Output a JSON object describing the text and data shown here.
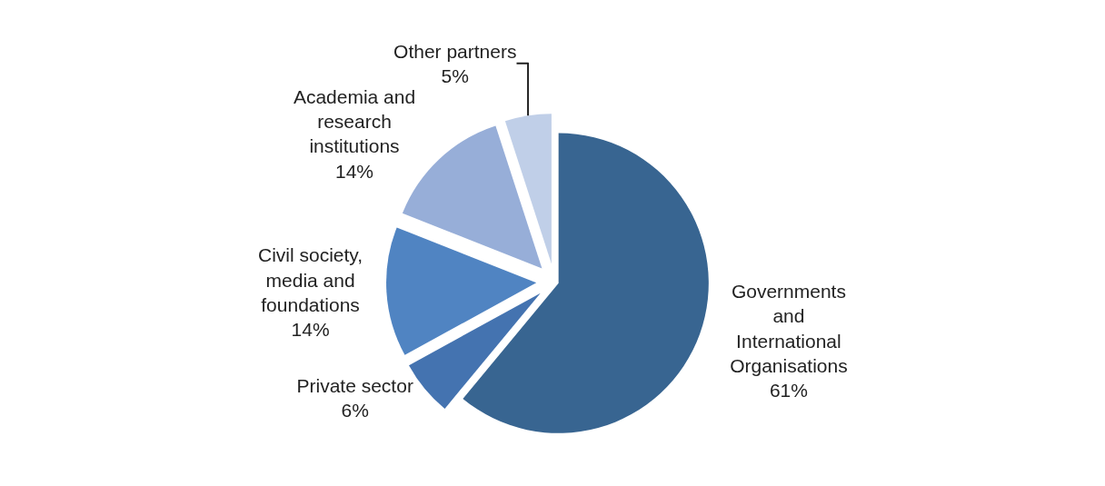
{
  "chart_data": {
    "type": "pie",
    "categories": [
      "Governments and International Organisations",
      "Private sector",
      "Civil society, media and foundations",
      "Academia and research institutions",
      "Other partners"
    ],
    "values": [
      61,
      6,
      14,
      14,
      5
    ],
    "value_labels": [
      "61%",
      "6%",
      "14%",
      "14%",
      "5%"
    ],
    "colors": [
      "#386591",
      "#4473b0",
      "#5084c2",
      "#97aed8",
      "#c0cfe8"
    ],
    "legend": false
  }
}
